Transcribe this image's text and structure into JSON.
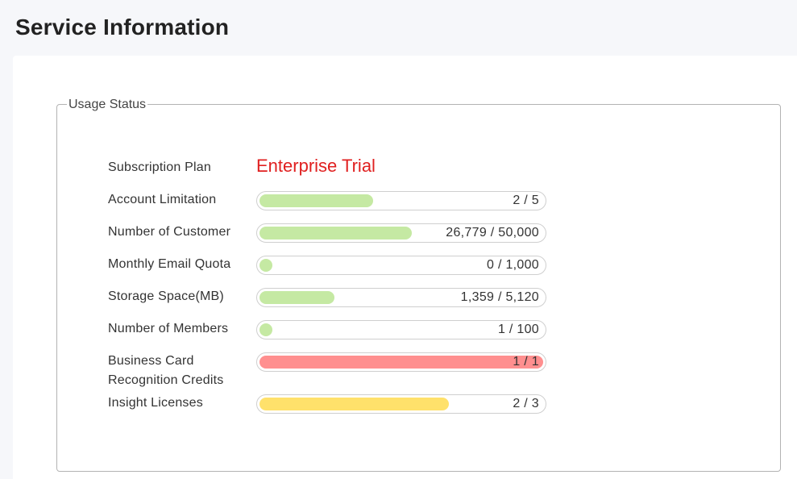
{
  "page": {
    "title": "Service Information"
  },
  "usage": {
    "legend": "Usage Status",
    "plan_label": "Subscription Plan",
    "plan_value": "Enterprise Trial",
    "rows": [
      {
        "label": "Account Limitation",
        "value_text": "2 / 5",
        "fraction": 0.4,
        "color": "#c5e9a3"
      },
      {
        "label": "Number of Customer",
        "value_text": "26,779 / 50,000",
        "fraction": 0.536,
        "color": "#c5e9a3"
      },
      {
        "label": "Monthly Email Quota",
        "value_text": "0 / 1,000",
        "fraction": 0.0,
        "color": "#c5e9a3"
      },
      {
        "label": "Storage Space(MB)",
        "value_text": "1,359 / 5,120",
        "fraction": 0.265,
        "color": "#c5e9a3"
      },
      {
        "label": "Number of Members",
        "value_text": "1 / 100",
        "fraction": 0.01,
        "color": "#c5e9a3"
      },
      {
        "label": "Business Card Recognition Credits",
        "value_text": "1 / 1",
        "fraction": 1.0,
        "color": "#ff8f8f"
      },
      {
        "label": "Insight Licenses",
        "value_text": "2 / 3",
        "fraction": 0.667,
        "color": "#ffe16b"
      }
    ]
  }
}
